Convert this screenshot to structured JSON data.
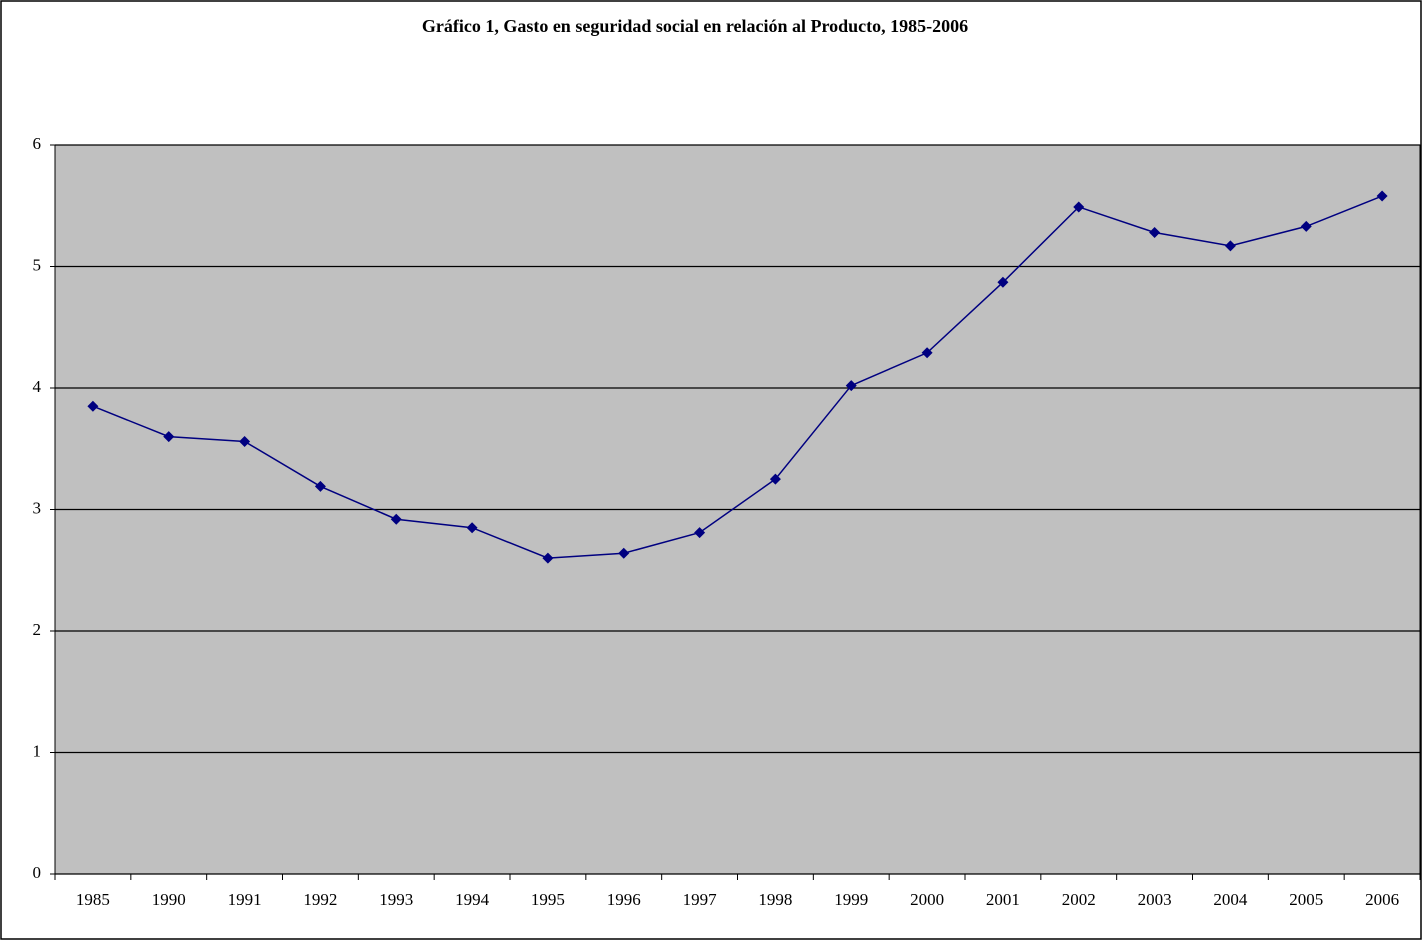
{
  "chart_data": {
    "type": "line",
    "title": "Gráfico 1, Gasto en seguridad social en relación al Producto, 1985-2006",
    "categories": [
      "1985",
      "1990",
      "1991",
      "1992",
      "1993",
      "1994",
      "1995",
      "1996",
      "1997",
      "1998",
      "1999",
      "2000",
      "2001",
      "2002",
      "2003",
      "2004",
      "2005",
      "2006"
    ],
    "values": [
      3.85,
      3.6,
      3.56,
      3.19,
      2.92,
      2.85,
      2.6,
      2.64,
      2.81,
      3.25,
      4.02,
      4.29,
      4.87,
      5.49,
      5.28,
      5.17,
      5.33,
      5.58
    ],
    "color": "#000080",
    "ylim": [
      0,
      6
    ],
    "yticks": [
      0,
      1,
      2,
      3,
      4,
      5,
      6
    ],
    "grid": true
  }
}
